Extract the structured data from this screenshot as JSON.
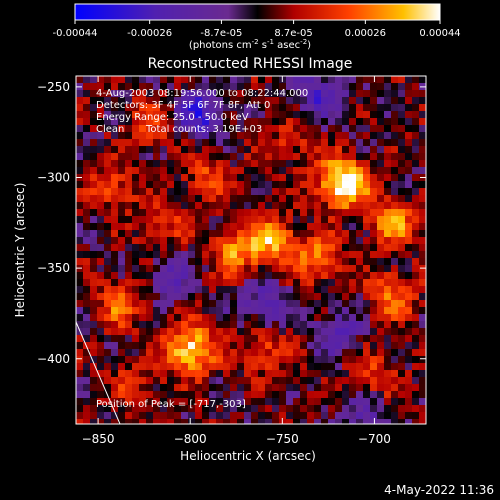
{
  "chart_data": {
    "type": "heatmap",
    "title": "Reconstructed RHESSI Image",
    "xlabel": "Heliocentric X (arcsec)",
    "ylabel": "Heliocentric Y (arcsec)",
    "xlim": [
      -862,
      -672
    ],
    "ylim": [
      -436,
      -244
    ],
    "x_ticks": [
      -850,
      -800,
      -750,
      -700
    ],
    "y_ticks": [
      -250,
      -300,
      -350,
      -400
    ],
    "colorbar": {
      "ticks": [
        "-0.00044",
        "-0.00026",
        "-8.7e-05",
        "8.7e-05",
        "0.00026",
        "0.00044"
      ],
      "tick_values": [
        -0.00044,
        -0.00026,
        -8.7e-05,
        8.7e-05,
        0.00026,
        0.00044
      ],
      "range": [
        -0.00044,
        0.00044
      ],
      "unit_base": "(photons cm",
      "unit_exp1": "-2",
      "unit_mid": " s",
      "unit_exp2": "-1",
      "unit_mid2": " asec",
      "unit_exp3": "-2",
      "unit_end": ")"
    },
    "annotations": {
      "time": "4-Aug-2003 08:19:56.000 to 08:22:44.000",
      "detectors": "Detectors: 3F 4F 5F 6F 7F 8F, Att 0",
      "energy": "Energy Range: 25.0 - 50.0 keV",
      "clean": "Clean",
      "counts": "Total counts: 3.19E+03",
      "peak": "Position of Peak = [-717,-303]"
    },
    "peak_position": [
      -717,
      -303
    ],
    "hot_spots": [
      {
        "x": -717,
        "y": -303,
        "strength": 1.0
      },
      {
        "x": -800,
        "y": -395,
        "strength": 0.85
      },
      {
        "x": -775,
        "y": -340,
        "strength": 0.55
      },
      {
        "x": -755,
        "y": -335,
        "strength": 0.6
      },
      {
        "x": -730,
        "y": -345,
        "strength": 0.5
      },
      {
        "x": -690,
        "y": -325,
        "strength": 0.55
      },
      {
        "x": -690,
        "y": -365,
        "strength": 0.5
      },
      {
        "x": -838,
        "y": -370,
        "strength": 0.45
      },
      {
        "x": -842,
        "y": -305,
        "strength": 0.4
      },
      {
        "x": -820,
        "y": -270,
        "strength": 0.4
      },
      {
        "x": -790,
        "y": -300,
        "strength": 0.35
      },
      {
        "x": -760,
        "y": -395,
        "strength": 0.4
      },
      {
        "x": -700,
        "y": -410,
        "strength": 0.35
      },
      {
        "x": -815,
        "y": -325,
        "strength": 0.35
      },
      {
        "x": -745,
        "y": -280,
        "strength": 0.3
      },
      {
        "x": -830,
        "y": -415,
        "strength": 0.3
      }
    ],
    "cold_spots": [
      {
        "x": -795,
        "y": -265,
        "strength": 0.7
      },
      {
        "x": -730,
        "y": -255,
        "strength": 0.5
      },
      {
        "x": -760,
        "y": -370,
        "strength": 0.45
      },
      {
        "x": -720,
        "y": -385,
        "strength": 0.4
      },
      {
        "x": -705,
        "y": -430,
        "strength": 0.35
      },
      {
        "x": -810,
        "y": -355,
        "strength": 0.35
      }
    ],
    "limb_line": true
  },
  "footer_date": "4-May-2022 11:36"
}
